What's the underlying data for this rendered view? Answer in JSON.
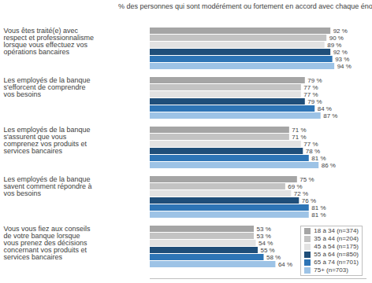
{
  "chart_data": {
    "type": "bar",
    "orientation": "horizontal",
    "title": "% des personnes qui sont modérément ou fortement en accord avec chaque énoncé",
    "categories": [
      "Vous êtes traité(e) avec respect et professionnalisme lorsque vous effectuez vos opérations bancaires",
      "Les employés de la banque s'efforcent de comprendre vos besoins",
      "Les employés de la banque s'assurent que vous comprenez vos produits et services bancaires",
      "Les employés de la banque savent comment répondre à vos besoins",
      "Vous vous fiez aux conseils de votre banque lorsque vous prenez des décisions concernant vos produits et services bancaires"
    ],
    "series": [
      {
        "name": "18 à 34 (n=374)",
        "color": "#a5a5a5",
        "values": [
          92,
          79,
          71,
          75,
          53
        ],
        "value_labels": [
          "92 %",
          "79 %",
          "71 %",
          "75 %",
          "53 %"
        ]
      },
      {
        "name": "35 à 44 (n=204)",
        "color": "#c3c3c3",
        "values": [
          90,
          77,
          71,
          69,
          53
        ],
        "value_labels": [
          "90 %",
          "77 %",
          "71 %",
          "69 %",
          "53 %"
        ]
      },
      {
        "name": "45 à 54 (n=175)",
        "color": "#e2e2e2",
        "values": [
          89,
          77,
          77,
          72,
          54
        ],
        "value_labels": [
          "89 %",
          "77 %",
          "77 %",
          "72 %",
          "54 %"
        ]
      },
      {
        "name": "55 à 64 (n=850)",
        "color": "#1f4e79",
        "values": [
          92,
          79,
          78,
          76,
          55
        ],
        "value_labels": [
          "92 %",
          "79 %",
          "78 %",
          "76 %",
          "55 %"
        ]
      },
      {
        "name": "65 à 74 (n=701)",
        "color": "#2e75b6",
        "values": [
          93,
          84,
          81,
          81,
          58
        ],
        "value_labels": [
          "93 %",
          "84 %",
          "81 %",
          "81 %",
          "58 %"
        ]
      },
      {
        "name": "75+ (n=703)",
        "color": "#9dc3e6",
        "values": [
          94,
          87,
          86,
          81,
          64
        ],
        "value_labels": [
          "94 %",
          "87 %",
          "86 %",
          "81 %",
          "64 %"
        ]
      }
    ],
    "xlim": [
      0,
      110
    ],
    "xticks": [],
    "tick_labels": false,
    "data_labels": true,
    "legend": "lower right"
  }
}
